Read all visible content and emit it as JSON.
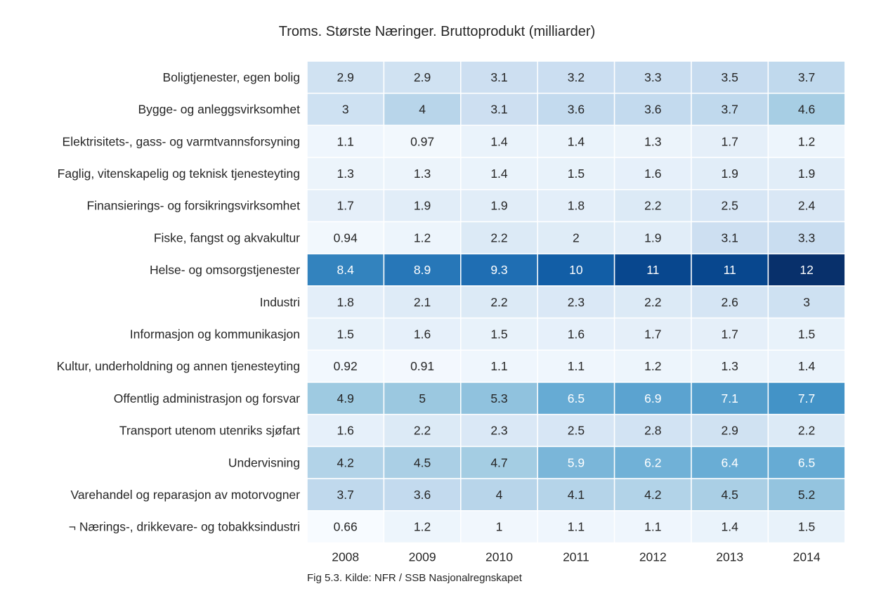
{
  "chart_data": {
    "type": "heatmap",
    "title": "Troms. Største Næringer. Bruttoprodukt (milliarder)",
    "caption": "Fig 5.3. Kilde: NFR / SSB Nasjonalregnskapet",
    "colormap": "Blues",
    "color_low": "#f7fbff",
    "color_high": "#08306b",
    "x": [
      "2008",
      "2009",
      "2010",
      "2011",
      "2012",
      "2013",
      "2014"
    ],
    "y": [
      "Boligtjenester, egen bolig",
      "Bygge- og anleggsvirksomhet",
      "Elektrisitets-, gass- og varmtvannsforsyning",
      "Faglig, vitenskapelig og teknisk tjenesteyting",
      "Finansierings- og forsikringsvirksomhet",
      "Fiske, fangst og akvakultur",
      "Helse- og omsorgstjenester",
      "Industri",
      "Informasjon og kommunikasjon",
      "Kultur, underholdning og annen tjenesteyting",
      "Offentlig administrasjon og forsvar",
      "Transport utenom utenriks sjøfart",
      "Undervisning",
      "Varehandel og reparasjon av motorvogner",
      "¬ Nærings-, drikkevare- og tobakksindustri"
    ],
    "values": [
      [
        2.9,
        2.9,
        3.1,
        3.2,
        3.3,
        3.5,
        3.7
      ],
      [
        3,
        4,
        3.1,
        3.6,
        3.6,
        3.7,
        4.6
      ],
      [
        1.1,
        0.97,
        1.4,
        1.4,
        1.3,
        1.7,
        1.2
      ],
      [
        1.3,
        1.3,
        1.4,
        1.5,
        1.6,
        1.9,
        1.9
      ],
      [
        1.7,
        1.9,
        1.9,
        1.8,
        2.2,
        2.5,
        2.4
      ],
      [
        0.94,
        1.2,
        2.2,
        2,
        1.9,
        3.1,
        3.3
      ],
      [
        8.4,
        8.9,
        9.3,
        10,
        11,
        11,
        12
      ],
      [
        1.8,
        2.1,
        2.2,
        2.3,
        2.2,
        2.6,
        3
      ],
      [
        1.5,
        1.6,
        1.5,
        1.6,
        1.7,
        1.7,
        1.5
      ],
      [
        0.92,
        0.91,
        1.1,
        1.1,
        1.2,
        1.3,
        1.4
      ],
      [
        4.9,
        5,
        5.3,
        6.5,
        6.9,
        7.1,
        7.7
      ],
      [
        1.6,
        2.2,
        2.3,
        2.5,
        2.8,
        2.9,
        2.2
      ],
      [
        4.2,
        4.5,
        4.7,
        5.9,
        6.2,
        6.4,
        6.5
      ],
      [
        3.7,
        3.6,
        4,
        4.1,
        4.2,
        4.5,
        5.2
      ],
      [
        0.66,
        1.2,
        1,
        1.1,
        1.1,
        1.4,
        1.5
      ]
    ],
    "labels": [
      [
        "2.9",
        "2.9",
        "3.1",
        "3.2",
        "3.3",
        "3.5",
        "3.7"
      ],
      [
        "3",
        "4",
        "3.1",
        "3.6",
        "3.6",
        "3.7",
        "4.6"
      ],
      [
        "1.1",
        "0.97",
        "1.4",
        "1.4",
        "1.3",
        "1.7",
        "1.2"
      ],
      [
        "1.3",
        "1.3",
        "1.4",
        "1.5",
        "1.6",
        "1.9",
        "1.9"
      ],
      [
        "1.7",
        "1.9",
        "1.9",
        "1.8",
        "2.2",
        "2.5",
        "2.4"
      ],
      [
        "0.94",
        "1.2",
        "2.2",
        "2",
        "1.9",
        "3.1",
        "3.3"
      ],
      [
        "8.4",
        "8.9",
        "9.3",
        "10",
        "11",
        "11",
        "12"
      ],
      [
        "1.8",
        "2.1",
        "2.2",
        "2.3",
        "2.2",
        "2.6",
        "3"
      ],
      [
        "1.5",
        "1.6",
        "1.5",
        "1.6",
        "1.7",
        "1.7",
        "1.5"
      ],
      [
        "0.92",
        "0.91",
        "1.1",
        "1.1",
        "1.2",
        "1.3",
        "1.4"
      ],
      [
        "4.9",
        "5",
        "5.3",
        "6.5",
        "6.9",
        "7.1",
        "7.7"
      ],
      [
        "1.6",
        "2.2",
        "2.3",
        "2.5",
        "2.8",
        "2.9",
        "2.2"
      ],
      [
        "4.2",
        "4.5",
        "4.7",
        "5.9",
        "6.2",
        "6.4",
        "6.5"
      ],
      [
        "3.7",
        "3.6",
        "4",
        "4.1",
        "4.2",
        "4.5",
        "5.2"
      ],
      [
        "0.66",
        "1.2",
        "1",
        "1.1",
        "1.1",
        "1.4",
        "1.5"
      ]
    ]
  }
}
